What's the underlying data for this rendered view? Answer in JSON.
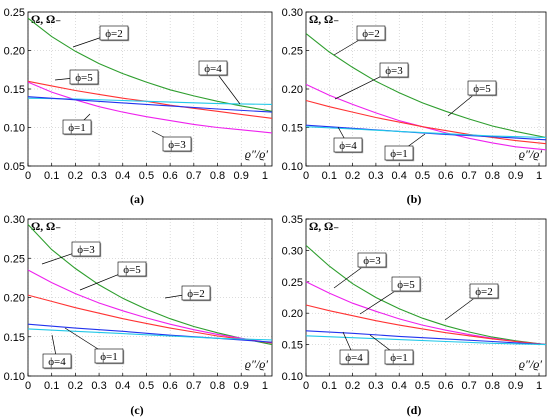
{
  "chart_data": [
    {
      "type": "line",
      "caption": "(a)",
      "ylabel": "Ω, Ω₋",
      "xlabel": "ϱ″/ϱ′",
      "xlim": [
        0,
        1.03
      ],
      "ylim": [
        0.05,
        0.25
      ],
      "xticks": [
        "0",
        "0.1",
        "0.2",
        "0.3",
        "0.4",
        "0.5",
        "0.6",
        "0.7",
        "0.8",
        "0.9",
        "1"
      ],
      "yticks": [
        "0.05",
        "0.10",
        "0.15",
        "0.20",
        "0.25"
      ],
      "grid": true,
      "series": [
        {
          "name": "ϕ=2",
          "color": "#2e9e2e",
          "x": [
            0,
            0.1,
            0.2,
            0.3,
            0.4,
            0.5,
            0.6,
            0.7,
            0.8,
            0.9,
            1.03
          ],
          "y": [
            0.242,
            0.218,
            0.199,
            0.183,
            0.17,
            0.159,
            0.149,
            0.141,
            0.134,
            0.128,
            0.121
          ]
        },
        {
          "name": "ϕ=5",
          "color": "#ff3333",
          "x": [
            0,
            0.1,
            0.2,
            0.3,
            0.4,
            0.5,
            0.6,
            0.7,
            0.8,
            0.9,
            1.03
          ],
          "y": [
            0.16,
            0.154,
            0.148,
            0.143,
            0.138,
            0.134,
            0.129,
            0.125,
            0.121,
            0.117,
            0.112
          ]
        },
        {
          "name": "ϕ=3",
          "color": "#ee22ee",
          "x": [
            0,
            0.1,
            0.2,
            0.3,
            0.4,
            0.5,
            0.6,
            0.7,
            0.8,
            0.9,
            1.03
          ],
          "y": [
            0.159,
            0.146,
            0.136,
            0.127,
            0.12,
            0.114,
            0.109,
            0.104,
            0.1,
            0.097,
            0.093
          ]
        },
        {
          "name": "ϕ=4",
          "color": "#22c8e8",
          "x": [
            0,
            0.2,
            0.4,
            0.6,
            0.8,
            1.03
          ],
          "y": [
            0.138,
            0.137,
            0.135,
            0.133,
            0.131,
            0.13
          ]
        },
        {
          "name": "ϕ=1",
          "color": "#2233ee",
          "x": [
            0,
            0.2,
            0.4,
            0.6,
            0.8,
            1.03
          ],
          "y": [
            0.14,
            0.136,
            0.132,
            0.128,
            0.124,
            0.12
          ]
        }
      ]
    },
    {
      "type": "line",
      "caption": "(b)",
      "ylabel": "Ω, Ω₋",
      "xlabel": "ϱ″/ϱ′",
      "xlim": [
        0,
        1.03
      ],
      "ylim": [
        0.1,
        0.3
      ],
      "xticks": [
        "0",
        "0.1",
        "0.2",
        "0.3",
        "0.4",
        "0.5",
        "0.6",
        "0.7",
        "0.8",
        "0.9",
        "1"
      ],
      "yticks": [
        "0.10",
        "0.15",
        "0.20",
        "0.25",
        "0.30"
      ],
      "grid": true,
      "series": [
        {
          "name": "ϕ=2",
          "color": "#2e9e2e",
          "x": [
            0,
            0.1,
            0.2,
            0.3,
            0.4,
            0.5,
            0.6,
            0.7,
            0.8,
            0.9,
            1.03
          ],
          "y": [
            0.272,
            0.248,
            0.228,
            0.21,
            0.195,
            0.182,
            0.171,
            0.161,
            0.152,
            0.145,
            0.137
          ]
        },
        {
          "name": "ϕ=3",
          "color": "#ee22ee",
          "x": [
            0,
            0.1,
            0.2,
            0.3,
            0.4,
            0.5,
            0.6,
            0.7,
            0.8,
            0.9,
            1.03
          ],
          "y": [
            0.206,
            0.192,
            0.18,
            0.169,
            0.159,
            0.151,
            0.143,
            0.136,
            0.13,
            0.125,
            0.121
          ]
        },
        {
          "name": "ϕ=5",
          "color": "#ff3333",
          "x": [
            0,
            0.1,
            0.2,
            0.3,
            0.4,
            0.5,
            0.6,
            0.7,
            0.8,
            0.9,
            1.03
          ],
          "y": [
            0.185,
            0.177,
            0.17,
            0.163,
            0.157,
            0.151,
            0.146,
            0.141,
            0.137,
            0.133,
            0.129
          ]
        },
        {
          "name": "ϕ=1",
          "color": "#2233ee",
          "x": [
            0,
            0.2,
            0.4,
            0.6,
            0.8,
            1.03
          ],
          "y": [
            0.153,
            0.149,
            0.145,
            0.141,
            0.138,
            0.134
          ]
        },
        {
          "name": "ϕ=4",
          "color": "#22c8e8",
          "x": [
            0,
            0.2,
            0.4,
            0.6,
            0.8,
            1.03
          ],
          "y": [
            0.151,
            0.148,
            0.145,
            0.142,
            0.139,
            0.137
          ]
        }
      ]
    },
    {
      "type": "line",
      "caption": "(c)",
      "ylabel": "Ω, Ω₋",
      "xlabel": "ϱ″/ϱ′",
      "xlim": [
        0,
        1.03
      ],
      "ylim": [
        0.1,
        0.3
      ],
      "xticks": [
        "0",
        "0.1",
        "0.2",
        "0.3",
        "0.4",
        "0.5",
        "0.6",
        "0.7",
        "0.8",
        "0.9",
        "1"
      ],
      "yticks": [
        "0.10",
        "0.15",
        "0.20",
        "0.25",
        "0.30"
      ],
      "grid": true,
      "series": [
        {
          "name": "ϕ=3",
          "color": "#2e9e2e",
          "x": [
            0,
            0.1,
            0.2,
            0.3,
            0.4,
            0.5,
            0.6,
            0.7,
            0.8,
            0.9,
            1.03
          ],
          "y": [
            0.293,
            0.261,
            0.237,
            0.216,
            0.199,
            0.185,
            0.173,
            0.163,
            0.155,
            0.148,
            0.14
          ]
        },
        {
          "name": "ϕ=5",
          "color": "#ee22ee",
          "x": [
            0,
            0.1,
            0.2,
            0.3,
            0.4,
            0.5,
            0.6,
            0.7,
            0.8,
            0.9,
            1.03
          ],
          "y": [
            0.235,
            0.219,
            0.205,
            0.193,
            0.183,
            0.174,
            0.166,
            0.159,
            0.153,
            0.148,
            0.142
          ]
        },
        {
          "name": "ϕ=2",
          "color": "#ff3333",
          "x": [
            0,
            0.1,
            0.2,
            0.3,
            0.4,
            0.5,
            0.6,
            0.7,
            0.8,
            0.9,
            1.03
          ],
          "y": [
            0.203,
            0.195,
            0.187,
            0.18,
            0.173,
            0.167,
            0.161,
            0.156,
            0.151,
            0.147,
            0.142
          ]
        },
        {
          "name": "ϕ=1",
          "color": "#2233ee",
          "x": [
            0,
            0.2,
            0.4,
            0.6,
            0.8,
            1.03
          ],
          "y": [
            0.166,
            0.161,
            0.157,
            0.152,
            0.148,
            0.143
          ]
        },
        {
          "name": "ϕ=4",
          "color": "#22c8e8",
          "x": [
            0,
            0.2,
            0.4,
            0.6,
            0.8,
            1.03
          ],
          "y": [
            0.16,
            0.157,
            0.154,
            0.151,
            0.148,
            0.146
          ]
        }
      ]
    },
    {
      "type": "line",
      "caption": "(d)",
      "ylabel": "Ω, Ω₋",
      "xlabel": "ϱ″/ϱ′",
      "xlim": [
        0,
        1.03
      ],
      "ylim": [
        0.1,
        0.35
      ],
      "xticks": [
        "0",
        "0.1",
        "0.2",
        "0.3",
        "0.4",
        "0.5",
        "0.6",
        "0.7",
        "0.8",
        "0.9",
        "1"
      ],
      "yticks": [
        "0.10",
        "0.15",
        "0.20",
        "0.25",
        "0.30",
        "0.35"
      ],
      "grid": true,
      "series": [
        {
          "name": "ϕ=3",
          "color": "#2e9e2e",
          "x": [
            0,
            0.1,
            0.2,
            0.3,
            0.4,
            0.5,
            0.6,
            0.7,
            0.8,
            0.9,
            1.03
          ],
          "y": [
            0.308,
            0.275,
            0.247,
            0.225,
            0.207,
            0.192,
            0.18,
            0.17,
            0.162,
            0.156,
            0.15
          ]
        },
        {
          "name": "ϕ=5",
          "color": "#ee22ee",
          "x": [
            0,
            0.1,
            0.2,
            0.3,
            0.4,
            0.5,
            0.6,
            0.7,
            0.8,
            0.9,
            1.03
          ],
          "y": [
            0.25,
            0.232,
            0.216,
            0.203,
            0.191,
            0.181,
            0.173,
            0.166,
            0.16,
            0.155,
            0.15
          ]
        },
        {
          "name": "ϕ=2",
          "color": "#ff3333",
          "x": [
            0,
            0.1,
            0.2,
            0.3,
            0.4,
            0.5,
            0.6,
            0.7,
            0.8,
            0.9,
            1.03
          ],
          "y": [
            0.213,
            0.204,
            0.196,
            0.188,
            0.181,
            0.175,
            0.169,
            0.164,
            0.159,
            0.155,
            0.15
          ]
        },
        {
          "name": "ϕ=1",
          "color": "#2233ee",
          "x": [
            0,
            0.2,
            0.4,
            0.6,
            0.8,
            1.03
          ],
          "y": [
            0.172,
            0.168,
            0.163,
            0.159,
            0.155,
            0.15
          ]
        },
        {
          "name": "ϕ=4",
          "color": "#22c8e8",
          "x": [
            0,
            0.2,
            0.4,
            0.6,
            0.8,
            1.03
          ],
          "y": [
            0.164,
            0.161,
            0.158,
            0.155,
            0.152,
            0.15
          ]
        }
      ]
    }
  ]
}
